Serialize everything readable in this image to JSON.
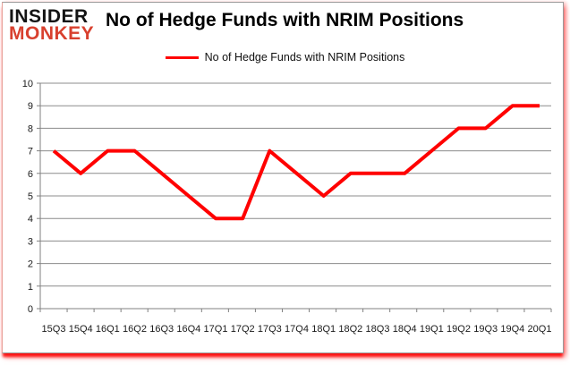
{
  "logo": {
    "line1": "INSIDER",
    "line2": "MONKEY"
  },
  "header": {
    "title": "No of Hedge Funds with NRIM Positions"
  },
  "legend": {
    "label": "No of Hedge Funds with NRIM Positions",
    "swatch_color": "#ff0000"
  },
  "colors": {
    "line": "#ff0000",
    "grid": "#8c8c8c",
    "axis": "#808080",
    "logo_black": "#141414",
    "logo_red": "#d8402e",
    "frame_accent_red": "#fc0808"
  },
  "chart_data": {
    "type": "line",
    "title": "No of Hedge Funds with NRIM Positions",
    "categories": [
      "15Q3",
      "15Q4",
      "16Q1",
      "16Q2",
      "16Q3",
      "16Q4",
      "17Q1",
      "17Q2",
      "17Q3",
      "17Q4",
      "18Q1",
      "18Q2",
      "18Q3",
      "18Q4",
      "19Q1",
      "19Q2",
      "19Q3",
      "19Q4",
      "20Q1"
    ],
    "series": [
      {
        "name": "No of Hedge Funds with NRIM Positions",
        "color": "#ff0000",
        "values": [
          7,
          6,
          7,
          7,
          6,
          5,
          4,
          4,
          7,
          6,
          5,
          6,
          6,
          6,
          7,
          8,
          8,
          9,
          9
        ]
      }
    ],
    "xlabel": "",
    "ylabel": "",
    "ylim": [
      0,
      10
    ],
    "yticks": [
      0,
      1,
      2,
      3,
      4,
      5,
      6,
      7,
      8,
      9,
      10
    ],
    "grid": true,
    "legend_position": "top-center"
  }
}
